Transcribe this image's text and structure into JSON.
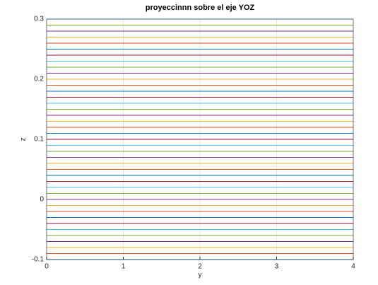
{
  "chart_data": {
    "type": "line",
    "title": "proyeccinnn sobre el eje YOZ",
    "xlabel": "y",
    "ylabel": "z",
    "x": [
      0,
      4
    ],
    "xlim": [
      0,
      4
    ],
    "xticks": [
      0,
      1,
      2,
      3,
      4
    ],
    "ylim": [
      -0.1,
      0.3
    ],
    "yticks": [
      -0.1,
      0,
      0.1,
      0.2,
      0.3
    ],
    "grid": true,
    "series": [
      {
        "color": "#0072BD",
        "values": [
          -0.1,
          -0.1
        ]
      },
      {
        "color": "#D95319",
        "values": [
          -0.09,
          -0.09
        ]
      },
      {
        "color": "#EDB120",
        "values": [
          -0.08,
          -0.08
        ]
      },
      {
        "color": "#7E2F8E",
        "values": [
          -0.07,
          -0.07
        ]
      },
      {
        "color": "#77AC30",
        "values": [
          -0.06,
          -0.06
        ]
      },
      {
        "color": "#4DBEEE",
        "values": [
          -0.05,
          -0.05
        ]
      },
      {
        "color": "#A2142F",
        "values": [
          -0.04,
          -0.04
        ]
      },
      {
        "color": "#0072BD",
        "values": [
          -0.03,
          -0.03
        ]
      },
      {
        "color": "#D95319",
        "values": [
          -0.02,
          -0.02
        ]
      },
      {
        "color": "#EDB120",
        "values": [
          -0.01,
          -0.01
        ]
      },
      {
        "color": "#7E2F8E",
        "values": [
          0,
          0
        ]
      },
      {
        "color": "#77AC30",
        "values": [
          0.01,
          0.01
        ]
      },
      {
        "color": "#4DBEEE",
        "values": [
          0.02,
          0.02
        ]
      },
      {
        "color": "#A2142F",
        "values": [
          0.03,
          0.03
        ]
      },
      {
        "color": "#0072BD",
        "values": [
          0.04,
          0.04
        ]
      },
      {
        "color": "#D95319",
        "values": [
          0.05,
          0.05
        ]
      },
      {
        "color": "#EDB120",
        "values": [
          0.06,
          0.06
        ]
      },
      {
        "color": "#7E2F8E",
        "values": [
          0.07,
          0.07
        ]
      },
      {
        "color": "#77AC30",
        "values": [
          0.08,
          0.08
        ]
      },
      {
        "color": "#4DBEEE",
        "values": [
          0.09,
          0.09
        ]
      },
      {
        "color": "#A2142F",
        "values": [
          0.1,
          0.1
        ]
      },
      {
        "color": "#0072BD",
        "values": [
          0.11,
          0.11
        ]
      },
      {
        "color": "#D95319",
        "values": [
          0.12,
          0.12
        ]
      },
      {
        "color": "#EDB120",
        "values": [
          0.13,
          0.13
        ]
      },
      {
        "color": "#7E2F8E",
        "values": [
          0.14,
          0.14
        ]
      },
      {
        "color": "#77AC30",
        "values": [
          0.15,
          0.15
        ]
      },
      {
        "color": "#4DBEEE",
        "values": [
          0.16,
          0.16
        ]
      },
      {
        "color": "#A2142F",
        "values": [
          0.17,
          0.17
        ]
      },
      {
        "color": "#0072BD",
        "values": [
          0.18,
          0.18
        ]
      },
      {
        "color": "#D95319",
        "values": [
          0.19,
          0.19
        ]
      },
      {
        "color": "#EDB120",
        "values": [
          0.2,
          0.2
        ]
      },
      {
        "color": "#7E2F8E",
        "values": [
          0.21,
          0.21
        ]
      },
      {
        "color": "#77AC30",
        "values": [
          0.22,
          0.22
        ]
      },
      {
        "color": "#4DBEEE",
        "values": [
          0.23,
          0.23
        ]
      },
      {
        "color": "#A2142F",
        "values": [
          0.24,
          0.24
        ]
      },
      {
        "color": "#0072BD",
        "values": [
          0.25,
          0.25
        ]
      },
      {
        "color": "#D95319",
        "values": [
          0.26,
          0.26
        ]
      },
      {
        "color": "#EDB120",
        "values": [
          0.27,
          0.27
        ]
      },
      {
        "color": "#7E2F8E",
        "values": [
          0.28,
          0.28
        ]
      },
      {
        "color": "#77AC30",
        "values": [
          0.29,
          0.29
        ]
      },
      {
        "color": "#4DBEEE",
        "values": [
          0.3,
          0.3
        ]
      }
    ]
  }
}
